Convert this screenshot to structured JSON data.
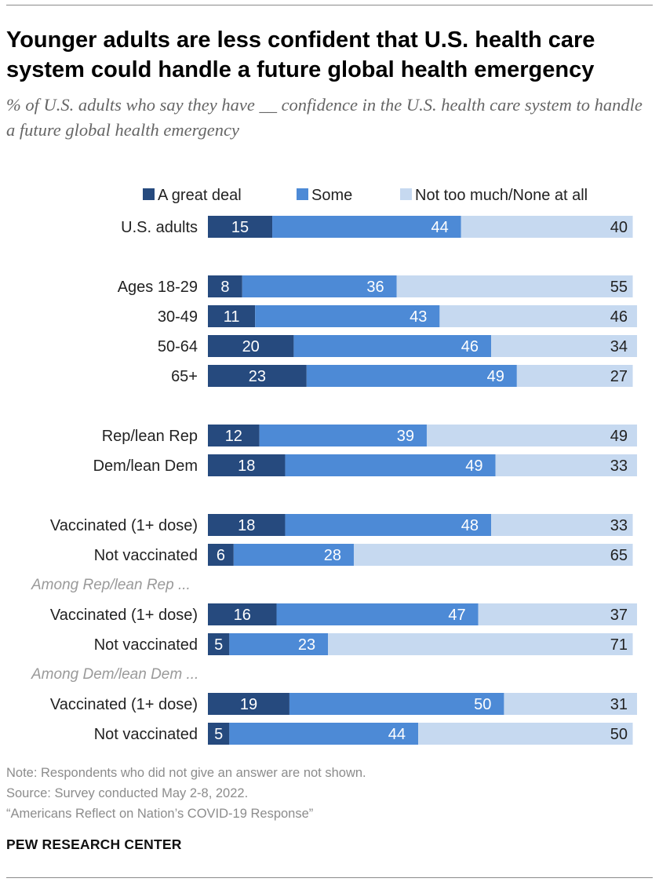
{
  "title": "Younger adults are less confident that U.S. health care system could handle a future global health emergency",
  "subtitle": "% of U.S. adults who say they have __ confidence in the U.S. health care system to handle a future global health emergency",
  "notes": {
    "note": "Note: Respondents who did not give an answer are not shown.",
    "source": "Source: Survey conducted May 2-8, 2022.",
    "report": "“Americans Reflect on Nation’s COVID-19 Response”"
  },
  "brand": "PEW RESEARCH CENTER",
  "chart_data": {
    "type": "bar",
    "orientation": "horizontal",
    "stacked": true,
    "legend_placement": "top",
    "grid": false,
    "xlim": [
      0,
      100
    ],
    "series": [
      {
        "name": "A great deal",
        "color": "#264a7e"
      },
      {
        "name": "Some",
        "color": "#4d8ad6"
      },
      {
        "name": "Not too much/None at all",
        "color": "#c6d9f0"
      }
    ],
    "section_labels": [
      "Among Rep/lean Rep ...",
      "Among Dem/lean Dem ..."
    ],
    "rows": [
      {
        "label": "U.S. adults",
        "values": [
          15,
          44,
          40
        ]
      },
      {
        "label": "Ages 18-29",
        "values": [
          8,
          36,
          55
        ]
      },
      {
        "label": "30-49",
        "values": [
          11,
          43,
          46
        ]
      },
      {
        "label": "50-64",
        "values": [
          20,
          46,
          34
        ]
      },
      {
        "label": "65+",
        "values": [
          23,
          49,
          27
        ]
      },
      {
        "label": "Rep/lean Rep",
        "values": [
          12,
          39,
          49
        ]
      },
      {
        "label": "Dem/lean Dem",
        "values": [
          18,
          49,
          33
        ]
      },
      {
        "label": "Vaccinated (1+ dose)",
        "values": [
          18,
          48,
          33
        ]
      },
      {
        "label": "Not vaccinated",
        "values": [
          6,
          28,
          65
        ]
      },
      {
        "label": "Vaccinated (1+ dose)",
        "values": [
          16,
          47,
          37
        ]
      },
      {
        "label": "Not vaccinated",
        "values": [
          5,
          23,
          71
        ]
      },
      {
        "label": "Vaccinated (1+ dose)",
        "values": [
          19,
          50,
          31
        ]
      },
      {
        "label": "Not vaccinated",
        "values": [
          5,
          44,
          50
        ]
      }
    ]
  }
}
